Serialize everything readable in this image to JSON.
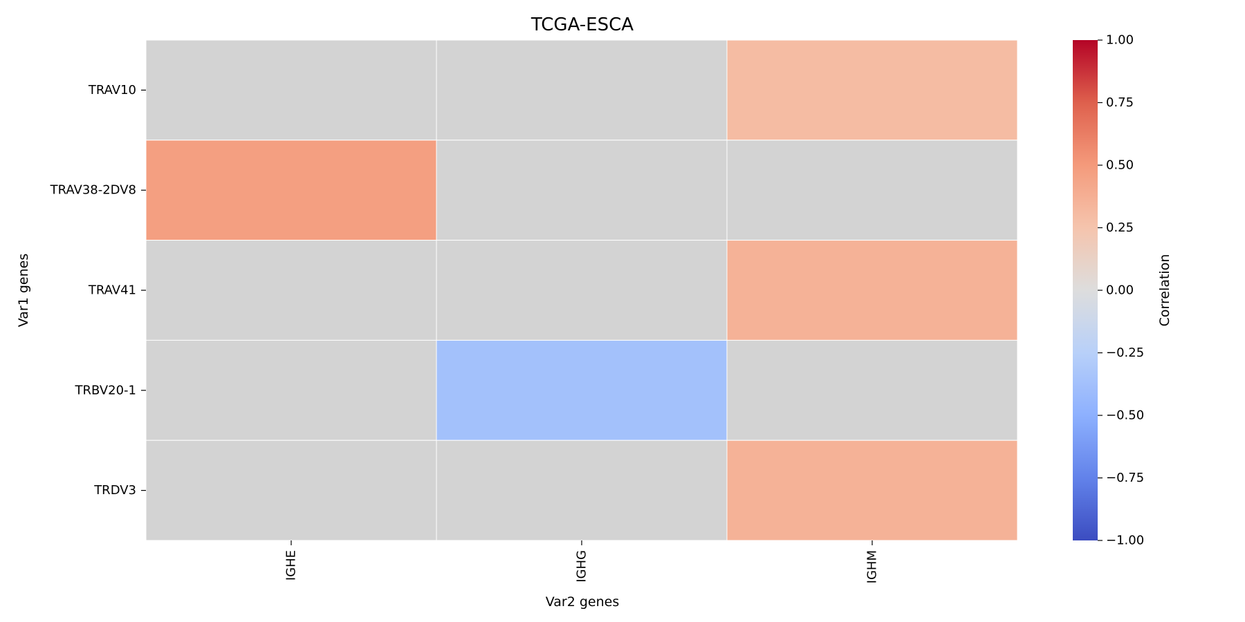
{
  "chart_data": {
    "type": "heatmap",
    "title": "TCGA-ESCA",
    "xlabel": "Var2 genes",
    "ylabel": "Var1 genes",
    "x_categories": [
      "IGHE",
      "IGHG",
      "IGHM"
    ],
    "y_categories": [
      "TRAV10",
      "TRAV38-2DV8",
      "TRAV41",
      "TRBV20-1",
      "TRDV3"
    ],
    "values": [
      [
        0,
        0,
        0.3
      ],
      [
        0.47,
        0,
        0
      ],
      [
        0,
        0,
        0.36
      ],
      [
        0,
        -0.37,
        0
      ],
      [
        0,
        0,
        0.36
      ]
    ],
    "colormap": "coolwarm",
    "vmin": -1,
    "vmax": 1,
    "colorbar": {
      "label": "Correlation",
      "ticks": [
        1.0,
        0.75,
        0.5,
        0.25,
        0.0,
        -0.25,
        -0.5,
        -0.75,
        -1.0
      ],
      "tick_labels": [
        "1.00",
        "0.75",
        "0.50",
        "0.25",
        "0.00",
        "−0.25",
        "−0.50",
        "−0.75",
        "−1.00"
      ]
    },
    "grid_color": "#ffffff"
  }
}
